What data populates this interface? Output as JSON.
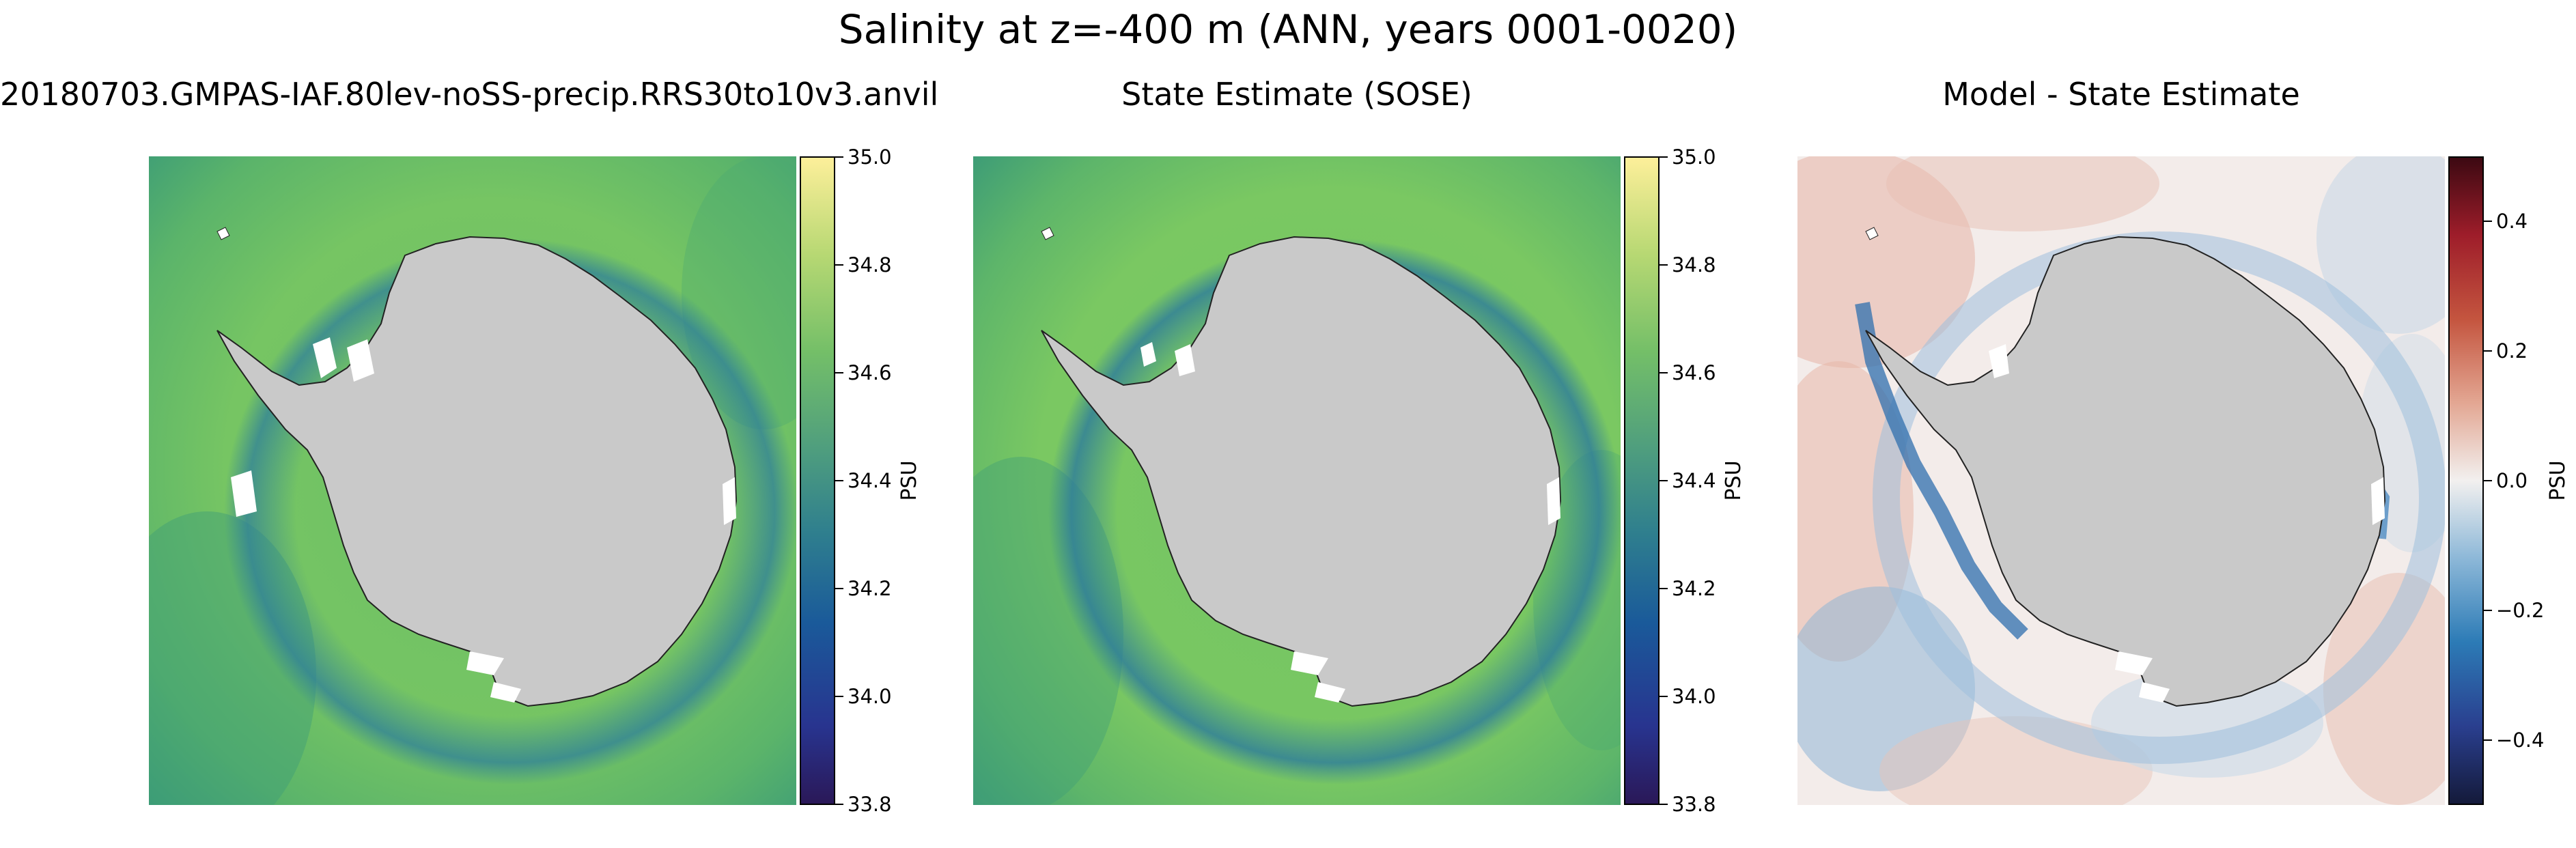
{
  "figure": {
    "suptitle": "Salinity at z=-400 m (ANN, years 0001-0020)"
  },
  "colors": {
    "land": "#c9c9c9",
    "ocean_mid": "#74c365",
    "shelf_blue": "#1f6aa6",
    "diff_neg": "#2c7bb6",
    "diff_pos": "#d6604d"
  },
  "chart_data": [
    {
      "type": "heatmap",
      "title": "20180703.GMPAS-IAF.80lev-noSS-precip.RRS30to10v3.anvil",
      "colorbar": {
        "label": "PSU",
        "colormap": "haline",
        "range": [
          33.8,
          35.0
        ],
        "ticks": [
          "33.8",
          "34.0",
          "34.2",
          "34.4",
          "34.6",
          "34.8",
          "35.0"
        ]
      }
    },
    {
      "type": "heatmap",
      "title": "State Estimate (SOSE)",
      "colorbar": {
        "label": "PSU",
        "colormap": "haline",
        "range": [
          33.8,
          35.0
        ],
        "ticks": [
          "33.8",
          "34.0",
          "34.2",
          "34.4",
          "34.6",
          "34.8",
          "35.0"
        ]
      }
    },
    {
      "type": "heatmap",
      "title": "Model - State Estimate",
      "colorbar": {
        "label": "PSU",
        "colormap": "balance",
        "range": [
          -0.5,
          0.5
        ],
        "ticks": [
          "−0.4",
          "−0.2",
          "0.0",
          "0.2",
          "0.4"
        ]
      }
    }
  ]
}
